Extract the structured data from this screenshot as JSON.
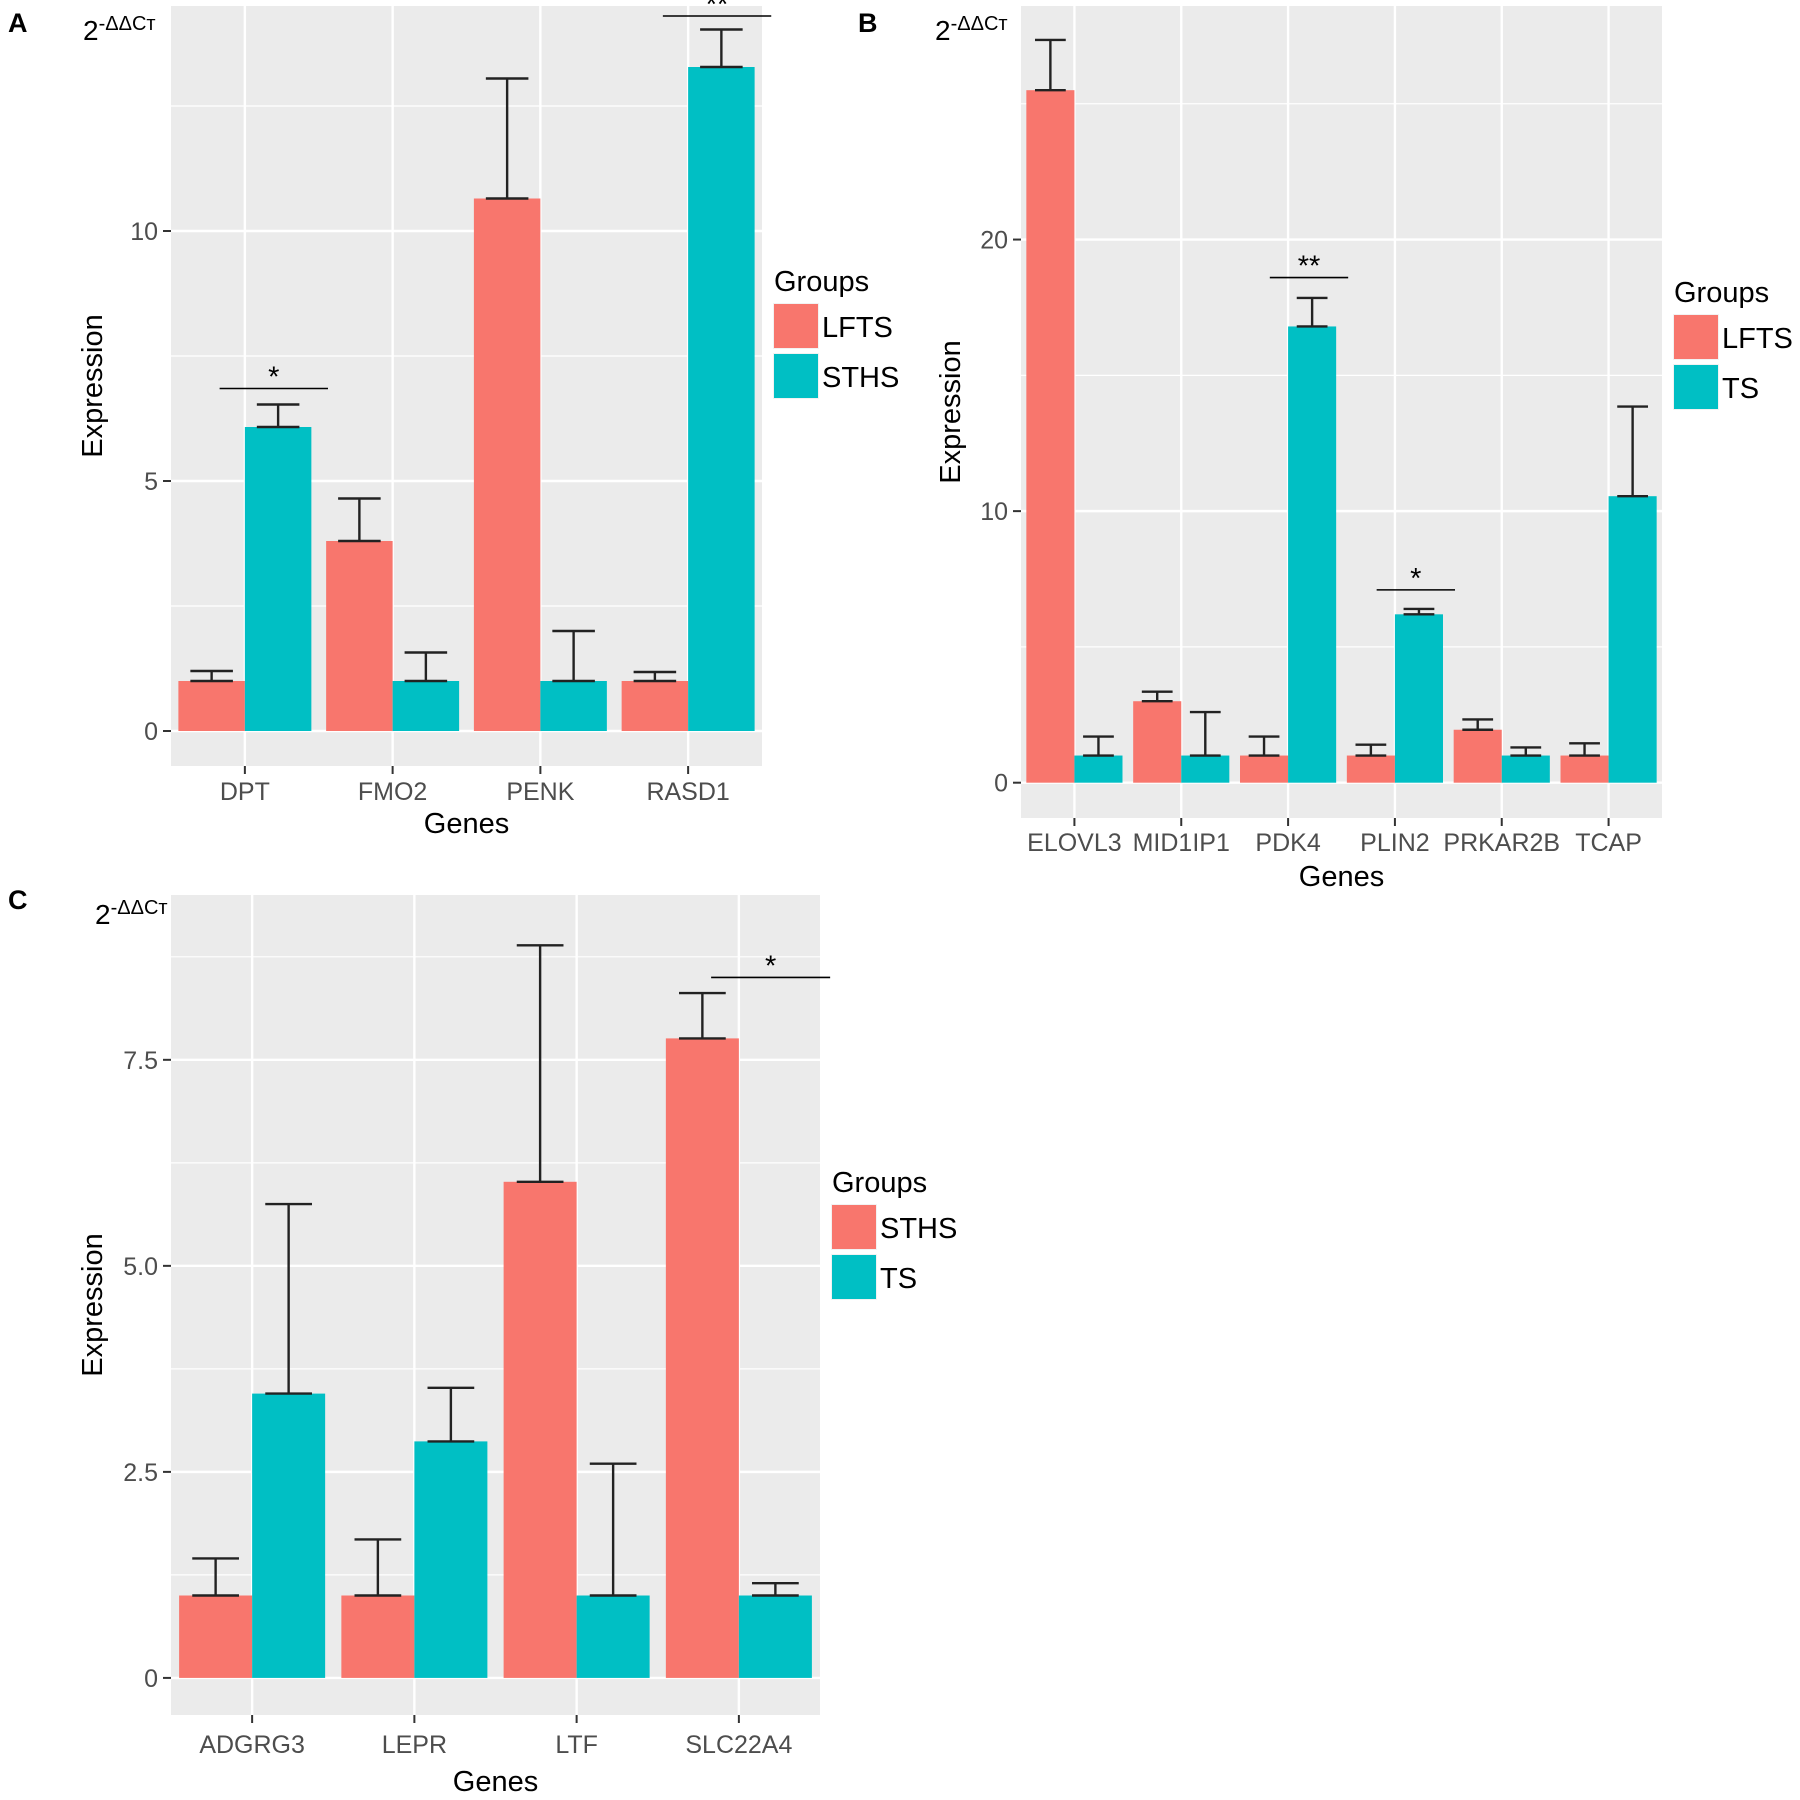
{
  "chart_data": [
    {
      "panel": "A",
      "type": "bar",
      "ylabel": "Expression",
      "xlabel": "Genes",
      "unit_label": {
        "base": "2",
        "exponent": "-ΔΔCт"
      },
      "categories": [
        "DPT",
        "FMO2",
        "PENK",
        "RASD1"
      ],
      "ylim": [
        -0.7,
        14.5
      ],
      "yticks": [
        0,
        5,
        10
      ],
      "ytick_labels": [
        "0",
        "5",
        "10"
      ],
      "legend": {
        "title": "Groups",
        "position": "right"
      },
      "series": [
        {
          "name": "LFTS",
          "color": "#F8766D",
          "values": [
            1.0,
            3.8,
            10.65,
            1.0
          ],
          "errors": [
            0.2,
            0.85,
            2.4,
            0.18
          ]
        },
        {
          "name": "STHS",
          "color": "#00BFC4",
          "values": [
            6.08,
            1.0,
            1.0,
            13.28
          ],
          "errors": [
            0.45,
            0.57,
            1.0,
            0.75
          ]
        }
      ],
      "significance": [
        {
          "category": "DPT",
          "label": "*",
          "y": 6.85
        },
        {
          "category": "RASD1",
          "label": "**",
          "y": 14.3
        }
      ]
    },
    {
      "panel": "B",
      "type": "bar",
      "ylabel": "Expression",
      "xlabel": "Genes",
      "unit_label": {
        "base": "2",
        "exponent": "-ΔΔCт"
      },
      "categories": [
        "ELOVL3",
        "MID1IP1",
        "PDK4",
        "PLIN2",
        "PRKAR2B",
        "TCAP"
      ],
      "ylim": [
        -1.3,
        28.6
      ],
      "yticks": [
        0,
        10,
        20
      ],
      "ytick_labels": [
        "0",
        "10",
        "20"
      ],
      "legend": {
        "title": "Groups",
        "position": "right"
      },
      "series": [
        {
          "name": "LFTS",
          "color": "#F8766D",
          "values": [
            25.5,
            3.0,
            1.0,
            1.0,
            1.95,
            1.0
          ],
          "errors": [
            1.85,
            0.35,
            0.7,
            0.4,
            0.38,
            0.45
          ]
        },
        {
          "name": "TS",
          "color": "#00BFC4",
          "values": [
            1.0,
            1.0,
            16.8,
            6.2,
            1.0,
            10.55
          ],
          "errors": [
            0.7,
            1.6,
            1.05,
            0.2,
            0.3,
            3.3
          ]
        }
      ],
      "significance": [
        {
          "category": "PDK4",
          "label": "**",
          "y": 18.6
        },
        {
          "category": "PLIN2",
          "label": "*",
          "y": 7.1
        }
      ]
    },
    {
      "panel": "C",
      "type": "bar",
      "ylabel": "Expression",
      "xlabel": "Genes",
      "unit_label": {
        "base": "2",
        "exponent": "-ΔΔCт"
      },
      "categories": [
        "ADGRG3",
        "LEPR",
        "LTF",
        "SLC22A4"
      ],
      "ylim": [
        -0.45,
        9.5
      ],
      "yticks": [
        0,
        2.5,
        5.0,
        7.5
      ],
      "ytick_labels": [
        "0",
        "2.5",
        "5.0",
        "7.5"
      ],
      "legend": {
        "title": "Groups",
        "position": "right"
      },
      "series": [
        {
          "name": "STHS",
          "color": "#F8766D",
          "values": [
            1.0,
            1.0,
            6.02,
            7.76
          ],
          "errors": [
            0.45,
            0.68,
            2.87,
            0.55
          ]
        },
        {
          "name": "TS",
          "color": "#00BFC4",
          "values": [
            3.45,
            2.87,
            1.0,
            1.0
          ],
          "errors": [
            2.3,
            0.65,
            1.6,
            0.15
          ]
        }
      ],
      "significance": [
        {
          "category": "SLC22A4",
          "label": "*",
          "y": 8.5
        }
      ]
    }
  ]
}
